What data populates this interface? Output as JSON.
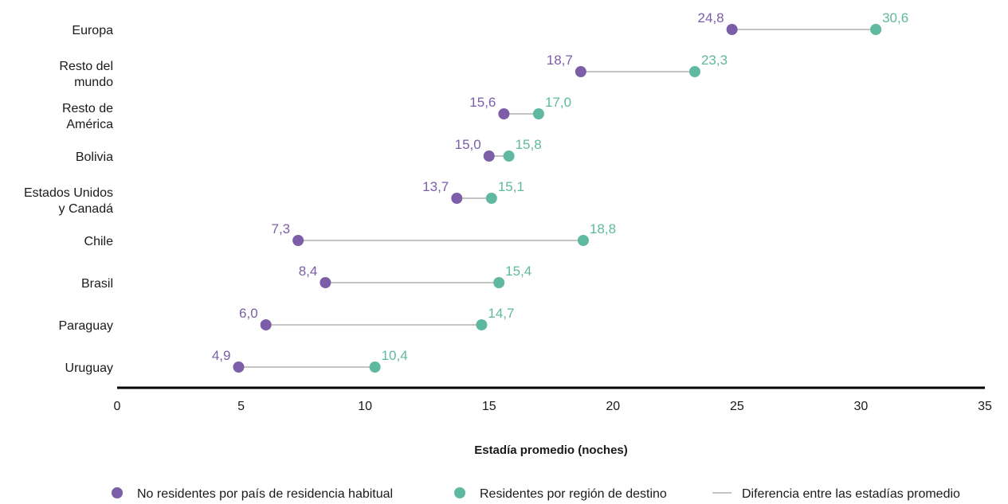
{
  "chart_data": {
    "type": "dumbbell",
    "xlabel": "Estadía promedio (noches)",
    "xlim": [
      0,
      35
    ],
    "xticks": [
      0,
      5,
      10,
      15,
      20,
      25,
      30,
      35
    ],
    "xtick_labels": [
      "0",
      "5",
      "10",
      "15",
      "20",
      "25",
      "30",
      "35"
    ],
    "categories": [
      [
        "Europa"
      ],
      [
        "Resto del",
        "mundo"
      ],
      [
        "Resto de",
        "América"
      ],
      [
        "Bolivia"
      ],
      [
        "Estados Unidos",
        "y Canadá"
      ],
      [
        "Chile"
      ],
      [
        "Brasil"
      ],
      [
        "Paraguay"
      ],
      [
        "Uruguay"
      ]
    ],
    "series": [
      {
        "name": "No residentes por país de residencia habitual",
        "color": "#7b5ea7",
        "values": [
          24.8,
          18.7,
          15.6,
          15.0,
          13.7,
          7.3,
          8.4,
          6.0,
          4.9
        ],
        "labels": [
          "24,8",
          "18,7",
          "15,6",
          "15,0",
          "13,7",
          "7,3",
          "8,4",
          "6,0",
          "4,9"
        ]
      },
      {
        "name": "Residentes por región de destino",
        "color": "#5fb8a0",
        "values": [
          30.6,
          23.3,
          17.0,
          15.8,
          15.1,
          18.8,
          15.4,
          14.7,
          10.4
        ],
        "labels": [
          "30,6",
          "23,3",
          "17,0",
          "15,8",
          "15,1",
          "18,8",
          "15,4",
          "14,7",
          "10,4"
        ]
      }
    ],
    "connector": {
      "name": "Diferencia entre las estadías promedio",
      "color": "#c4c4c4"
    },
    "grid": false,
    "legend_position": "bottom"
  }
}
